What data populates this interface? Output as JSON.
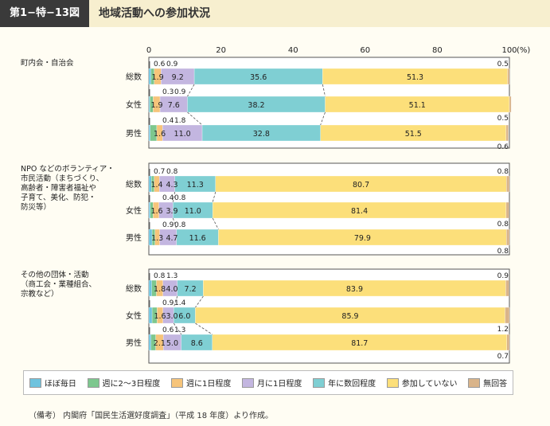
{
  "header": {
    "figure_number": "第1−特−13図",
    "title": "地域活動への参加状況"
  },
  "colors": {
    "daily": "#6ec3de",
    "weekly_2_3": "#7dc78e",
    "weekly_1": "#f6c47a",
    "monthly_1": "#c3b6e0",
    "yearly_few": "#7fcfd3",
    "none": "#fcdf7a",
    "no_answer": "#d9b48a"
  },
  "chart_data": {
    "type": "bar",
    "orientation": "horizontal",
    "stacked": true,
    "unit": "(%)",
    "xlim": [
      0,
      100
    ],
    "x_ticks": [
      "0",
      "20",
      "40",
      "60",
      "80",
      "100"
    ],
    "series": [
      {
        "name": "ほぼ毎日",
        "key": "daily"
      },
      {
        "name": "週に2〜3日程度",
        "key": "weekly_2_3"
      },
      {
        "name": "週に1日程度",
        "key": "weekly_1"
      },
      {
        "name": "月に1日程度",
        "key": "monthly_1"
      },
      {
        "name": "年に数回程度",
        "key": "yearly_few"
      },
      {
        "name": "参加していない",
        "key": "none"
      },
      {
        "name": "無回答",
        "key": "no_answer"
      }
    ],
    "groups": [
      {
        "label": "町内会・自治会",
        "bars": [
          {
            "category": "総数",
            "values": [
              0.6,
              0.9,
              1.9,
              9.2,
              35.6,
              51.3,
              0.5
            ]
          },
          {
            "category": "女性",
            "values": [
              0.3,
              0.9,
              1.9,
              7.6,
              38.2,
              51.1,
              0.5
            ]
          },
          {
            "category": "男性",
            "values": [
              0.4,
              1.8,
              1.6,
              11.0,
              32.8,
              51.5,
              0.6
            ]
          }
        ]
      },
      {
        "label": "NPOなどのボランティア・市民活動（まちづくり、高齢者・障害者福祉や子育て、美化、防犯・防災等）",
        "bars": [
          {
            "category": "総数",
            "values": [
              0.7,
              0.8,
              1.4,
              4.3,
              11.3,
              80.7,
              0.8
            ]
          },
          {
            "category": "女性",
            "values": [
              0.4,
              0.8,
              1.6,
              3.9,
              11.0,
              81.4,
              0.8
            ]
          },
          {
            "category": "男性",
            "values": [
              0.9,
              0.8,
              1.3,
              4.7,
              11.6,
              79.9,
              0.8
            ]
          }
        ]
      },
      {
        "label": "その他の団体・活動（商工会・業種組合、宗教など）",
        "bars": [
          {
            "category": "総数",
            "values": [
              0.8,
              1.3,
              1.8,
              4.0,
              7.2,
              83.9,
              0.9
            ]
          },
          {
            "category": "女性",
            "values": [
              0.9,
              1.4,
              1.6,
              3.0,
              6.0,
              85.9,
              1.2
            ]
          },
          {
            "category": "男性",
            "values": [
              0.6,
              1.3,
              2.1,
              5.0,
              8.6,
              81.7,
              0.7
            ]
          }
        ]
      }
    ]
  },
  "group_label_lines": [
    [
      "町内会・自治会"
    ],
    [
      "NPO などのボランティア・",
      "市民活動（まちづくり、",
      "高齢者・障害者福祉や",
      "子育て、美化、防犯・",
      "防災等）"
    ],
    [
      "その他の団体・活動",
      "（商工会・業種組合、",
      "宗教など）"
    ]
  ],
  "legend_labels": [
    "ほぼ毎日",
    "週に2〜3日程度",
    "週に1日程度",
    "月に1日程度",
    "年に数回程度",
    "参加していない",
    "無回答"
  ],
  "source_note": "（備考） 内閣府「国民生活選好度調査」（平成 18 年度）より作成。"
}
